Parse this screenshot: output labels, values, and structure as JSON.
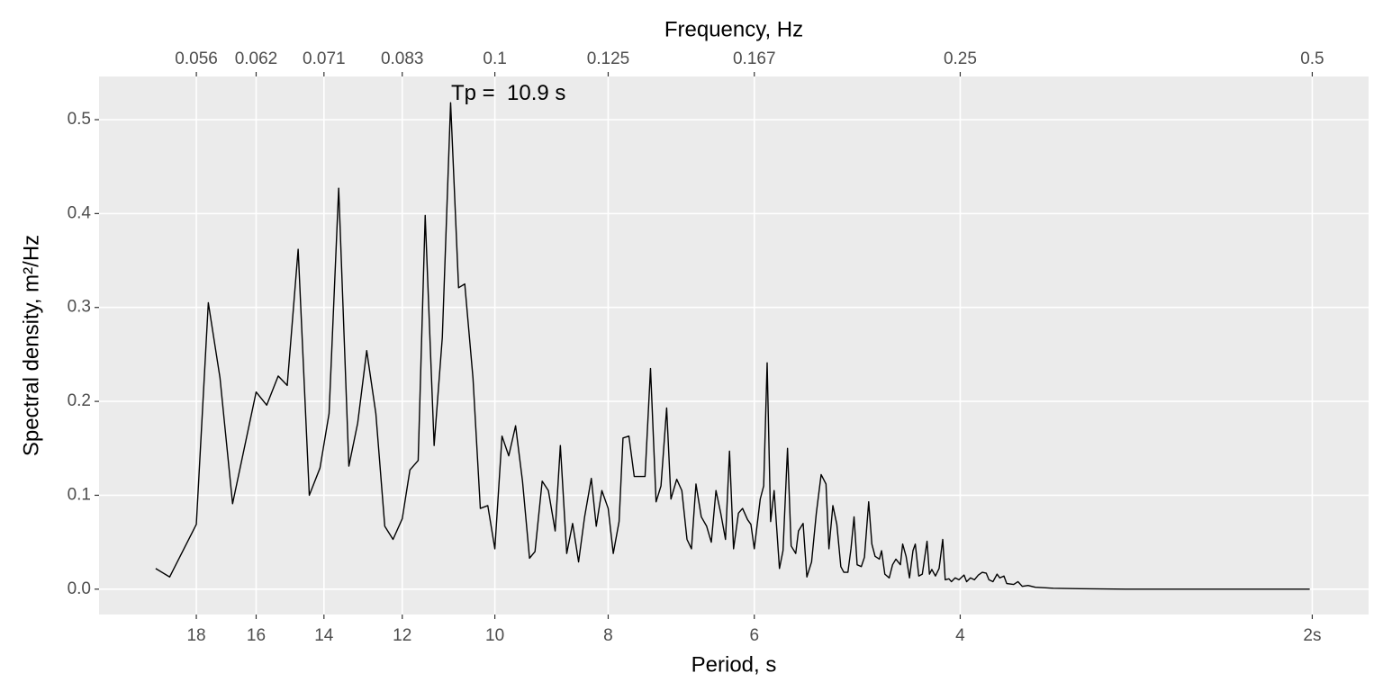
{
  "chart_data": {
    "type": "line",
    "xlabel": "Period, s",
    "x2label": "Frequency, Hz",
    "ylabel": "Spectral density, m²/Hz",
    "xscale": "log",
    "xreverse": true,
    "grid": true,
    "color": "#000000",
    "xlim": [
      21.8,
      1.79
    ],
    "ylim": [
      -0.027,
      0.546
    ],
    "xticks": [
      18,
      16,
      14,
      12,
      10,
      8,
      6,
      4,
      {
        "value": 2,
        "label": "2s"
      }
    ],
    "x2ticks": [
      {
        "value": 0.05556,
        "label": "0.056"
      },
      {
        "value": 0.0625,
        "label": "0.062"
      },
      {
        "value": 0.07143,
        "label": "0.071"
      },
      {
        "value": 0.08333,
        "label": "0.083"
      },
      0.1,
      0.125,
      {
        "value": 0.16667,
        "label": "0.167"
      },
      0.25,
      0.5
    ],
    "yticks": [
      {
        "value": 0,
        "label": "0.0"
      },
      0.1,
      0.2,
      0.3,
      0.4,
      0.5
    ],
    "annotations": [
      {
        "text": "Tp =  10.9 s",
        "x": 10.9,
        "y": 0.527
      }
    ],
    "x": [
      19.5,
      18.97,
      18.0,
      17.58,
      17.18,
      16.76,
      16.0,
      15.67,
      15.32,
      15.05,
      14.73,
      14.41,
      14.11,
      13.86,
      13.6,
      13.33,
      13.1,
      12.87,
      12.64,
      12.42,
      12.22,
      12.0,
      11.82,
      11.63,
      11.47,
      11.27,
      11.09,
      10.91,
      10.74,
      10.61,
      10.44,
      10.29,
      10.14,
      10.0,
      9.86,
      9.73,
      9.6,
      9.47,
      9.34,
      9.24,
      9.11,
      9.0,
      8.88,
      8.79,
      8.68,
      8.58,
      8.48,
      8.38,
      8.27,
      8.19,
      8.1,
      8.0,
      7.92,
      7.83,
      7.77,
      7.68,
      7.6,
      7.52,
      7.44,
      7.36,
      7.28,
      7.21,
      7.13,
      7.07,
      6.99,
      6.92,
      6.85,
      6.79,
      6.73,
      6.66,
      6.59,
      6.53,
      6.47,
      6.41,
      6.35,
      6.3,
      6.25,
      6.19,
      6.14,
      6.08,
      6.04,
      6.0,
      5.93,
      5.89,
      5.85,
      5.81,
      5.77,
      5.71,
      5.67,
      5.62,
      5.58,
      5.53,
      5.5,
      5.45,
      5.41,
      5.36,
      5.31,
      5.26,
      5.21,
      5.18,
      5.14,
      5.1,
      5.06,
      5.03,
      4.99,
      4.96,
      4.93,
      4.9,
      4.86,
      4.83,
      4.79,
      4.76,
      4.73,
      4.69,
      4.67,
      4.64,
      4.6,
      4.57,
      4.54,
      4.5,
      4.48,
      4.45,
      4.42,
      4.39,
      4.37,
      4.34,
      4.31,
      4.27,
      4.25,
      4.23,
      4.2,
      4.17,
      4.14,
      4.12,
      4.09,
      4.07,
      4.04,
      4.01,
      3.97,
      3.95,
      3.92,
      3.89,
      3.86,
      3.83,
      3.8,
      3.78,
      3.75,
      3.72,
      3.7,
      3.67,
      3.65,
      3.6,
      3.57,
      3.54,
      3.5,
      3.45,
      3.33,
      3.16,
      2.89,
      2.65,
      2.42,
      2.22,
      2.01
    ],
    "values": [
      0.022,
      0.013,
      0.069,
      0.305,
      0.225,
      0.091,
      0.21,
      0.196,
      0.227,
      0.217,
      0.362,
      0.1,
      0.129,
      0.187,
      0.427,
      0.131,
      0.177,
      0.254,
      0.187,
      0.067,
      0.053,
      0.075,
      0.127,
      0.137,
      0.398,
      0.153,
      0.268,
      0.518,
      0.321,
      0.325,
      0.225,
      0.086,
      0.089,
      0.043,
      0.163,
      0.142,
      0.174,
      0.115,
      0.033,
      0.04,
      0.115,
      0.105,
      0.062,
      0.153,
      0.038,
      0.07,
      0.029,
      0.077,
      0.118,
      0.067,
      0.105,
      0.086,
      0.038,
      0.072,
      0.161,
      0.163,
      0.12,
      0.12,
      0.12,
      0.235,
      0.093,
      0.11,
      0.193,
      0.096,
      0.117,
      0.105,
      0.053,
      0.043,
      0.112,
      0.077,
      0.067,
      0.05,
      0.105,
      0.081,
      0.053,
      0.147,
      0.043,
      0.081,
      0.086,
      0.074,
      0.069,
      0.043,
      0.096,
      0.11,
      0.241,
      0.072,
      0.105,
      0.022,
      0.041,
      0.15,
      0.046,
      0.038,
      0.062,
      0.07,
      0.013,
      0.029,
      0.081,
      0.122,
      0.112,
      0.043,
      0.089,
      0.069,
      0.024,
      0.018,
      0.018,
      0.043,
      0.077,
      0.026,
      0.024,
      0.034,
      0.093,
      0.048,
      0.035,
      0.032,
      0.041,
      0.016,
      0.012,
      0.026,
      0.032,
      0.026,
      0.048,
      0.035,
      0.012,
      0.041,
      0.048,
      0.014,
      0.016,
      0.051,
      0.016,
      0.021,
      0.014,
      0.022,
      0.053,
      0.01,
      0.011,
      0.008,
      0.012,
      0.01,
      0.015,
      0.008,
      0.012,
      0.01,
      0.015,
      0.018,
      0.017,
      0.01,
      0.008,
      0.016,
      0.012,
      0.014,
      0.006,
      0.005,
      0.008,
      0.003,
      0.004,
      0.002,
      0.001,
      0.0005,
      0,
      0,
      0,
      0,
      0
    ]
  }
}
